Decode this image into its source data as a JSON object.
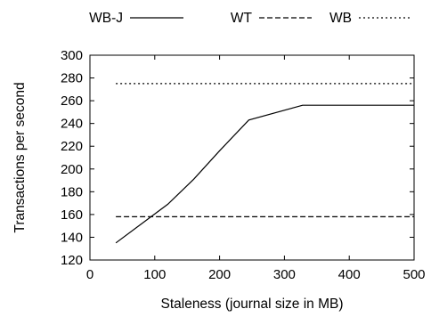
{
  "chart_data": {
    "type": "line",
    "xlabel": "Staleness (journal size in MB)",
    "ylabel": "Transactions per second",
    "xlim": [
      0,
      500
    ],
    "ylim": [
      120,
      300
    ],
    "xticks": [
      0,
      100,
      200,
      300,
      400,
      500
    ],
    "yticks": [
      120,
      140,
      160,
      180,
      200,
      220,
      240,
      260,
      280,
      300
    ],
    "grid": false,
    "legend_position": "top",
    "series": [
      {
        "name": "WB-J",
        "dash": "solid",
        "x": [
          40,
          120,
          160,
          200,
          245,
          328,
          500
        ],
        "y": [
          135,
          169,
          191,
          216,
          243,
          256,
          256
        ]
      },
      {
        "name": "WT",
        "dash": "dashed",
        "x": [
          40,
          500
        ],
        "y": [
          158,
          158
        ]
      },
      {
        "name": "WB",
        "dash": "dotted",
        "x": [
          40,
          500
        ],
        "y": [
          275,
          275
        ]
      }
    ]
  }
}
